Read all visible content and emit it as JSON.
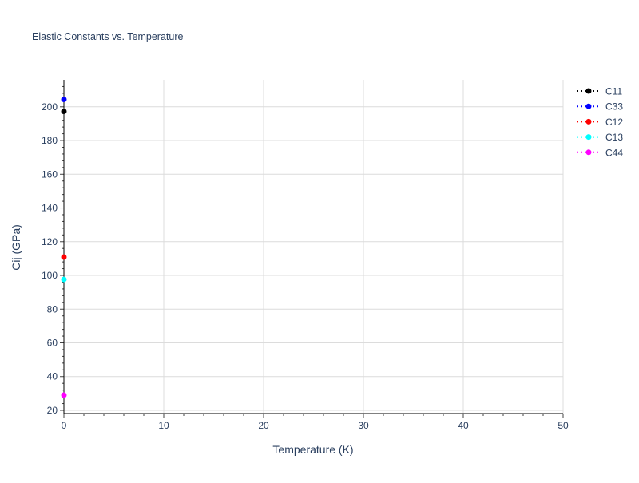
{
  "chart_data": {
    "type": "line",
    "title": "Elastic Constants vs. Temperature",
    "xlabel": "Temperature (K)",
    "ylabel": "Cij (GPa)",
    "xlim": [
      0,
      50
    ],
    "ylim": [
      18.1,
      216
    ],
    "x_ticks": [
      0,
      10,
      20,
      30,
      40,
      50
    ],
    "y_ticks": [
      20,
      40,
      60,
      80,
      100,
      120,
      140,
      160,
      180,
      200
    ],
    "grid": true,
    "legend_position": "top-right",
    "series": [
      {
        "name": "C11",
        "color": "#000000",
        "x": [
          0
        ],
        "y": [
          197.3
        ]
      },
      {
        "name": "C33",
        "color": "#0000ff",
        "x": [
          0
        ],
        "y": [
          204.4
        ]
      },
      {
        "name": "C12",
        "color": "#ff0000",
        "x": [
          0
        ],
        "y": [
          110.9
        ]
      },
      {
        "name": "C13",
        "color": "#00ffff",
        "x": [
          0
        ],
        "y": [
          97.6
        ]
      },
      {
        "name": "C44",
        "color": "#ff00ff",
        "x": [
          0
        ],
        "y": [
          29.0
        ]
      }
    ]
  }
}
